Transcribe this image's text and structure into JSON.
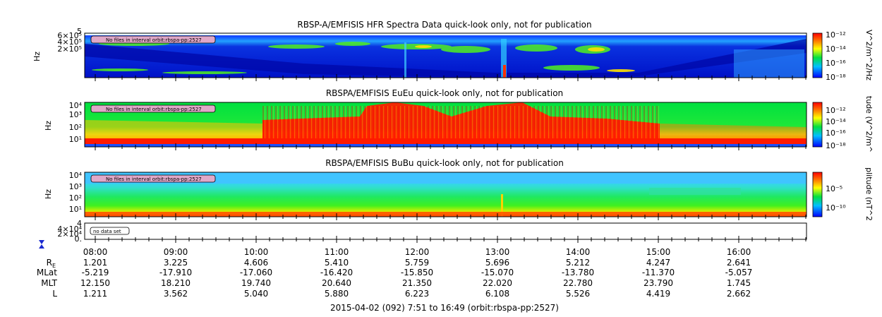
{
  "chart_data": [
    {
      "type": "heatmap",
      "title": "RBSP-A/EMFISIS  HFR Spectra Data quick-look only, not for publication",
      "ylabel": "Hz",
      "y_ticks": [
        "5",
        "6×10⁵",
        "4×10⁵",
        "2×10⁵"
      ],
      "notice": "No files in interval orbit:rbspa-pp:2527",
      "colorbar_label": "V^2/m^2/Hz",
      "colorbar_ticks": [
        "10⁻¹²",
        "10⁻¹⁴",
        "10⁻¹⁶",
        "10⁻¹⁸"
      ]
    },
    {
      "type": "heatmap",
      "title": "RBSPA/EMFISIS  EuEu quick-look only, not for publication",
      "ylabel": "Hz",
      "y_ticks": [
        "10⁴",
        "10³",
        "10²",
        "10¹"
      ],
      "notice": "No files in interval orbit:rbspa-pp:2527",
      "colorbar_label": "tude (V^2/m^",
      "colorbar_ticks": [
        "10⁻¹²",
        "10⁻¹⁴",
        "10⁻¹⁶",
        "10⁻¹⁸"
      ]
    },
    {
      "type": "heatmap",
      "title": "RBSPA/EMFISIS  BuBu quick-look only, not for publication",
      "ylabel": "Hz",
      "y_ticks": [
        "10⁴",
        "10³",
        "10²",
        "10¹"
      ],
      "notice": "No files in interval orbit:rbspa-pp:2527",
      "colorbar_label": "plitude (nT^2",
      "colorbar_ticks": [
        "10⁻⁵",
        "10⁻¹⁰"
      ]
    },
    {
      "type": "line",
      "y_ticks": [
        "4",
        "4×10⁴",
        "2×10⁴",
        "0."
      ],
      "notice": "no data set"
    }
  ],
  "x_axis": {
    "time_labels": [
      "08:00",
      "09:00",
      "10:00",
      "11:00",
      "12:00",
      "13:00",
      "14:00",
      "15:00",
      "16:00"
    ],
    "range": [
      "07:51",
      "16:49"
    ]
  },
  "ephemeris": [
    {
      "label": "R",
      "sub": "E",
      "values": [
        "1.201",
        "3.225",
        "4.606",
        "5.410",
        "5.759",
        "5.696",
        "5.212",
        "4.247",
        "2.641"
      ]
    },
    {
      "label": "MLat",
      "values": [
        "-5.219",
        "-17.910",
        "-17.060",
        "-16.420",
        "-15.850",
        "-15.070",
        "-13.780",
        "-11.370",
        "-5.057"
      ]
    },
    {
      "label": "MLT",
      "values": [
        "12.150",
        "18.210",
        "19.740",
        "20.640",
        "21.350",
        "22.020",
        "22.780",
        "23.790",
        "1.745"
      ]
    },
    {
      "label": "L",
      "values": [
        "1.211",
        "3.562",
        "5.040",
        "5.880",
        "6.223",
        "6.108",
        "5.526",
        "4.419",
        "2.662"
      ]
    }
  ],
  "footer": "2015-04-02 (092) 7:51 to 16:49 (orbit:rbspa-pp:2527)",
  "colors": {
    "low": "#0018d0",
    "mid": "#00e040",
    "high": "#ff1a00"
  }
}
